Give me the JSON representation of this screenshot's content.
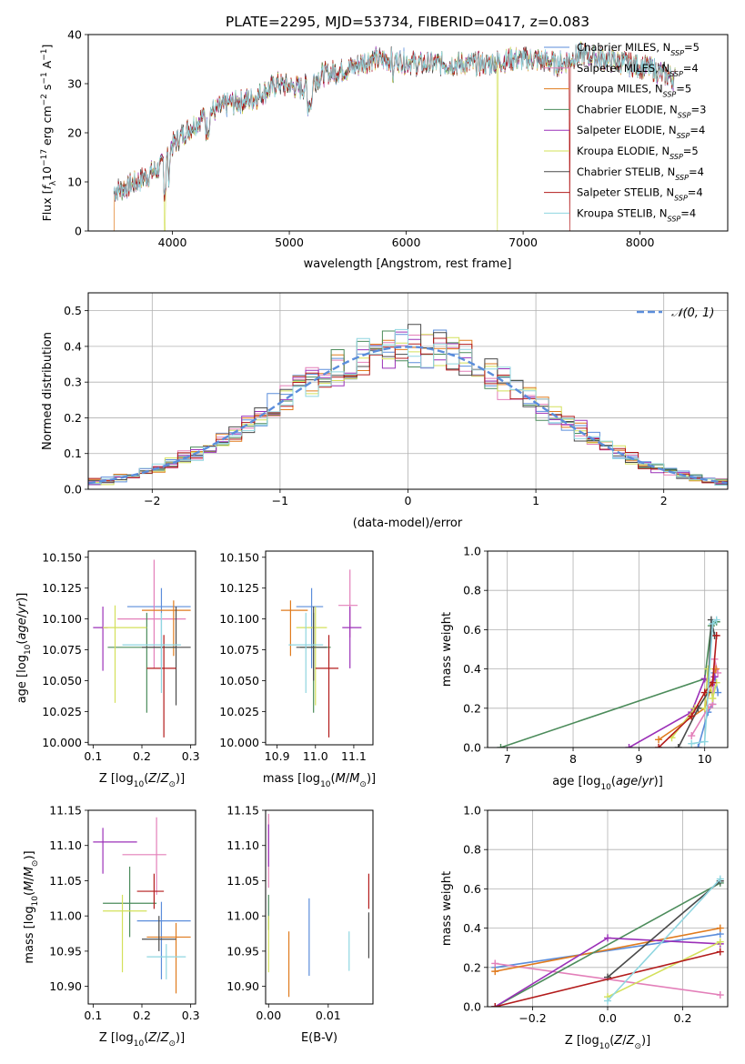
{
  "title": "PLATE=2295, MJD=53734, FIBERID=0417, z=0.083",
  "colors": [
    "#5b8ddb",
    "#e37fb9",
    "#e07b1e",
    "#4c8c5b",
    "#9b30b8",
    "#d3e05a",
    "#4a4a4a",
    "#b31b1b",
    "#8fd6e0"
  ],
  "chart_data": [
    {
      "id": "spectrum",
      "type": "line",
      "xlabel": "wavelength [Angstrom, rest frame]",
      "ylabel": "Flux [f_λ10^-17 erg cm^-2 s^-1 A^-1]",
      "xlim": [
        3280,
        8750
      ],
      "ylim": [
        0,
        40
      ],
      "xticks": [
        "4000",
        "5000",
        "6000",
        "7000",
        "8000"
      ],
      "yticks": [
        "0",
        "10",
        "20",
        "30",
        "40"
      ],
      "grid": false,
      "legend_position": "top-right",
      "legend": [
        {
          "base": "Chabrier MILES, N",
          "sub": "SSP",
          "tail": "=5"
        },
        {
          "base": "Salpeter MILES, N",
          "sub": "SSP",
          "tail": "=4"
        },
        {
          "base": "Kroupa MILES, N",
          "sub": "SSP",
          "tail": "=5"
        },
        {
          "base": "Chabrier ELODIE, N",
          "sub": "SSP",
          "tail": "=3"
        },
        {
          "base": "Salpeter ELODIE, N",
          "sub": "SSP",
          "tail": "=4"
        },
        {
          "base": "Kroupa ELODIE, N",
          "sub": "SSP",
          "tail": "=5"
        },
        {
          "base": "Chabrier STELIB, N",
          "sub": "SSP",
          "tail": "=4"
        },
        {
          "base": "Salpeter STELIB, N",
          "sub": "SSP",
          "tail": "=4"
        },
        {
          "base": "Kroupa STELIB, N",
          "sub": "SSP",
          "tail": "=4"
        }
      ],
      "continuum": [
        [
          3500,
          8
        ],
        [
          3700,
          10
        ],
        [
          3900,
          13
        ],
        [
          3980,
          17
        ],
        [
          4100,
          20
        ],
        [
          4300,
          24
        ],
        [
          4500,
          26
        ],
        [
          4700,
          27
        ],
        [
          4900,
          30
        ],
        [
          5100,
          29
        ],
        [
          5300,
          32
        ],
        [
          5500,
          33
        ],
        [
          5700,
          35
        ],
        [
          5900,
          35
        ],
        [
          6100,
          34
        ],
        [
          6300,
          34
        ],
        [
          6500,
          34
        ],
        [
          6700,
          34
        ],
        [
          6900,
          35
        ],
        [
          7100,
          35
        ],
        [
          7300,
          34
        ],
        [
          7500,
          36
        ],
        [
          7700,
          35
        ],
        [
          7900,
          34
        ],
        [
          8100,
          33
        ],
        [
          8300,
          31
        ]
      ],
      "xrange": [
        3500,
        8300
      ],
      "sharp_drops": [
        {
          "series": 2,
          "x": 3500
        },
        {
          "series": 5,
          "x": 3935
        },
        {
          "series": 5,
          "x": 6780
        },
        {
          "series": 7,
          "x": 7400
        }
      ]
    },
    {
      "id": "residuals",
      "type": "histogram",
      "xlabel": "(data-model)/error",
      "ylabel": "Normed distribution",
      "xlim": [
        -2.5,
        2.5
      ],
      "ylim": [
        0,
        0.55
      ],
      "xticks": [
        [
          "-2",
          "−2"
        ],
        [
          "-1",
          "−1"
        ],
        [
          "0",
          "0"
        ],
        [
          "1",
          "1"
        ],
        [
          "2",
          "2"
        ]
      ],
      "yticks": [
        "0.0",
        "0.1",
        "0.2",
        "0.3",
        "0.4",
        "0.5"
      ],
      "grid": true,
      "legend_position": "top-right",
      "legend_label": "𝒩(0, 1)",
      "bin_width": 0.1,
      "model_peak": 0.399
    },
    {
      "id": "age_vs_Z",
      "type": "errorbar",
      "xlabel": "Z [log10(Z/Z⊙)]",
      "ylabel": "age [log10(age/yr)]",
      "xlim": [
        0.09,
        0.31
      ],
      "ylim": [
        9.998,
        10.155
      ],
      "xticks": [
        "0.1",
        "0.2",
        "0.3"
      ],
      "yticks": [
        "10.000",
        "10.025",
        "10.050",
        "10.075",
        "10.100",
        "10.125",
        "10.150"
      ],
      "points": [
        {
          "s": 0,
          "x": 0.24,
          "y": 10.11,
          "xerr": [
            0.17,
            0.3
          ],
          "yerr": [
            10.06,
            10.125
          ]
        },
        {
          "s": 1,
          "x": 0.225,
          "y": 10.1,
          "xerr": [
            0.15,
            0.29
          ],
          "yerr": [
            10.06,
            10.148
          ]
        },
        {
          "s": 2,
          "x": 0.265,
          "y": 10.107,
          "xerr": [
            0.2,
            0.3
          ],
          "yerr": [
            10.07,
            10.115
          ]
        },
        {
          "s": 3,
          "x": 0.21,
          "y": 10.077,
          "xerr": [
            0.13,
            0.27
          ],
          "yerr": [
            10.024,
            10.105
          ]
        },
        {
          "s": 4,
          "x": 0.12,
          "y": 10.093,
          "xerr": [
            0.1,
            0.13
          ],
          "yerr": [
            10.058,
            10.11
          ]
        },
        {
          "s": 5,
          "x": 0.145,
          "y": 10.093,
          "xerr": [
            0.12,
            0.21
          ],
          "yerr": [
            10.032,
            10.111
          ]
        },
        {
          "s": 6,
          "x": 0.27,
          "y": 10.077,
          "xerr": [
            0.2,
            0.3
          ],
          "yerr": [
            10.03,
            10.11
          ]
        },
        {
          "s": 7,
          "x": 0.245,
          "y": 10.06,
          "xerr": [
            0.21,
            0.27
          ],
          "yerr": [
            10.004,
            10.087
          ]
        },
        {
          "s": 8,
          "x": 0.24,
          "y": 10.079,
          "xerr": [
            0.16,
            0.28
          ],
          "yerr": [
            10.04,
            10.105
          ]
        }
      ]
    },
    {
      "id": "age_vs_mass",
      "type": "errorbar",
      "xlabel": "mass [log10(M/M⊙)]",
      "ylabel": "",
      "xlim": [
        10.87,
        11.15
      ],
      "ylim": [
        9.998,
        10.155
      ],
      "xticks": [
        "10.9",
        "11.0",
        "11.1"
      ],
      "yticks": [
        "10.000",
        "10.025",
        "10.050",
        "10.075",
        "10.100",
        "10.125",
        "10.150"
      ],
      "points": [
        {
          "s": 0,
          "x": 10.99,
          "y": 10.11,
          "xerr": [
            10.95,
            11.02
          ],
          "yerr": [
            10.06,
            10.125
          ]
        },
        {
          "s": 1,
          "x": 11.09,
          "y": 10.111,
          "xerr": [
            11.06,
            11.11
          ],
          "yerr": [
            10.085,
            10.14
          ]
        },
        {
          "s": 2,
          "x": 10.935,
          "y": 10.107,
          "xerr": [
            10.91,
            10.98
          ],
          "yerr": [
            10.07,
            10.115
          ]
        },
        {
          "s": 3,
          "x": 10.995,
          "y": 10.077,
          "xerr": [
            10.96,
            11.04
          ],
          "yerr": [
            10.024,
            10.105
          ]
        },
        {
          "s": 4,
          "x": 11.09,
          "y": 10.093,
          "xerr": [
            11.07,
            11.12
          ],
          "yerr": [
            10.06,
            10.11
          ]
        },
        {
          "s": 5,
          "x": 11.0,
          "y": 10.093,
          "xerr": [
            10.95,
            11.03
          ],
          "yerr": [
            10.03,
            10.11
          ]
        },
        {
          "s": 6,
          "x": 10.995,
          "y": 10.077,
          "xerr": [
            10.95,
            11.03
          ],
          "yerr": [
            10.05,
            10.11
          ]
        },
        {
          "s": 7,
          "x": 11.035,
          "y": 10.06,
          "xerr": [
            11.0,
            11.06
          ],
          "yerr": [
            10.004,
            10.087
          ]
        },
        {
          "s": 8,
          "x": 10.975,
          "y": 10.079,
          "xerr": [
            10.93,
            11.02
          ],
          "yerr": [
            10.04,
            10.105
          ]
        }
      ]
    },
    {
      "id": "mass_weight_vs_age",
      "type": "line",
      "xlabel": "age [log10(age/yr)]",
      "ylabel": "mass weight",
      "xlim": [
        6.7,
        10.35
      ],
      "ylim": [
        0,
        1
      ],
      "xticks": [
        "7",
        "8",
        "9",
        "10"
      ],
      "yticks": [
        "0.0",
        "0.2",
        "0.4",
        "0.6",
        "0.8",
        "1.0"
      ],
      "grid": true,
      "series": [
        {
          "s": 0,
          "points": [
            [
              9.9,
              0.0
            ],
            [
              10.05,
              0.18
            ],
            [
              10.12,
              0.22
            ],
            [
              10.15,
              0.38
            ],
            [
              10.2,
              0.28
            ]
          ]
        },
        {
          "s": 1,
          "points": [
            [
              9.8,
              0.06
            ],
            [
              10.05,
              0.2
            ],
            [
              10.12,
              0.22
            ],
            [
              10.15,
              0.45
            ],
            [
              10.2,
              0.38
            ]
          ]
        },
        {
          "s": 2,
          "points": [
            [
              9.3,
              0.04
            ],
            [
              10.0,
              0.2
            ],
            [
              10.12,
              0.33
            ],
            [
              10.17,
              0.4
            ]
          ]
        },
        {
          "s": 3,
          "points": [
            [
              6.9,
              0.0
            ],
            [
              10.0,
              0.35
            ],
            [
              10.1,
              0.62
            ],
            [
              10.18,
              0.64
            ]
          ]
        },
        {
          "s": 4,
          "points": [
            [
              8.85,
              0.0
            ],
            [
              9.8,
              0.18
            ],
            [
              10.0,
              0.35
            ],
            [
              10.1,
              0.32
            ],
            [
              10.15,
              0.36
            ]
          ]
        },
        {
          "s": 5,
          "points": [
            [
              9.5,
              0.05
            ],
            [
              9.85,
              0.2
            ],
            [
              10.0,
              0.2
            ],
            [
              10.05,
              0.4
            ],
            [
              10.12,
              0.25
            ],
            [
              10.18,
              0.33
            ]
          ]
        },
        {
          "s": 6,
          "points": [
            [
              9.6,
              0.0
            ],
            [
              9.9,
              0.2
            ],
            [
              10.05,
              0.28
            ],
            [
              10.1,
              0.65
            ],
            [
              10.15,
              0.57
            ]
          ]
        },
        {
          "s": 7,
          "points": [
            [
              9.3,
              0.0
            ],
            [
              9.8,
              0.16
            ],
            [
              10.0,
              0.28
            ],
            [
              10.12,
              0.33
            ],
            [
              10.18,
              0.57
            ]
          ]
        },
        {
          "s": 8,
          "points": [
            [
              9.8,
              0.02
            ],
            [
              10.0,
              0.03
            ],
            [
              10.12,
              0.63
            ],
            [
              10.18,
              0.65
            ]
          ]
        }
      ]
    },
    {
      "id": "mass_vs_Z",
      "type": "errorbar",
      "xlabel": "Z [log10(Z/Z⊙)]",
      "ylabel": "mass [log10(M/M⊙)]",
      "xlim": [
        0.09,
        0.31
      ],
      "ylim": [
        10.875,
        11.15
      ],
      "xticks": [
        "0.1",
        "0.2",
        "0.3"
      ],
      "yticks": [
        "10.90",
        "10.95",
        "11.00",
        "11.05",
        "11.10",
        "11.15"
      ],
      "points": [
        {
          "s": 0,
          "x": 0.24,
          "y": 10.993,
          "xerr": [
            0.19,
            0.3
          ],
          "yerr": [
            10.91,
            11.02
          ]
        },
        {
          "s": 1,
          "x": 0.23,
          "y": 11.087,
          "xerr": [
            0.16,
            0.25
          ],
          "yerr": [
            11.03,
            11.14
          ]
        },
        {
          "s": 2,
          "x": 0.27,
          "y": 10.97,
          "xerr": [
            0.21,
            0.3
          ],
          "yerr": [
            10.89,
            10.99
          ]
        },
        {
          "s": 3,
          "x": 0.175,
          "y": 11.018,
          "xerr": [
            0.12,
            0.23
          ],
          "yerr": [
            10.97,
            11.07
          ]
        },
        {
          "s": 4,
          "x": 0.12,
          "y": 11.105,
          "xerr": [
            0.1,
            0.19
          ],
          "yerr": [
            11.06,
            11.125
          ]
        },
        {
          "s": 5,
          "x": 0.16,
          "y": 11.007,
          "xerr": [
            0.12,
            0.21
          ],
          "yerr": [
            10.92,
            11.03
          ]
        },
        {
          "s": 6,
          "x": 0.235,
          "y": 10.967,
          "xerr": [
            0.2,
            0.27
          ],
          "yerr": [
            10.95,
            11.0
          ]
        },
        {
          "s": 7,
          "x": 0.225,
          "y": 11.035,
          "xerr": [
            0.19,
            0.245
          ],
          "yerr": [
            11.01,
            11.06
          ]
        },
        {
          "s": 8,
          "x": 0.25,
          "y": 10.942,
          "xerr": [
            0.21,
            0.29
          ],
          "yerr": [
            10.91,
            10.96
          ]
        }
      ]
    },
    {
      "id": "mass_vs_EBV",
      "type": "errorbar",
      "xlabel": "E(B-V)",
      "ylabel": "",
      "xlim": [
        -0.0005,
        0.0175
      ],
      "ylim": [
        10.875,
        11.15
      ],
      "xticks": [
        "0.00",
        "0.01"
      ],
      "yticks": [
        "10.90",
        "10.95",
        "11.00",
        "11.05",
        "11.10",
        "11.15"
      ],
      "points": [
        {
          "s": 0,
          "x": 0.0068,
          "y": 10.97,
          "yerr": [
            10.915,
            11.025
          ]
        },
        {
          "s": 1,
          "x": 0.0,
          "y": 11.09,
          "yerr": [
            11.04,
            11.145
          ]
        },
        {
          "s": 2,
          "x": 0.0034,
          "y": 10.93,
          "yerr": [
            10.885,
            10.978
          ]
        },
        {
          "s": 3,
          "x": 0.0,
          "y": 11.0,
          "yerr": [
            10.98,
            11.03
          ]
        },
        {
          "s": 4,
          "x": 0.0,
          "y": 11.1,
          "yerr": [
            11.07,
            11.13
          ]
        },
        {
          "s": 5,
          "x": 0.0,
          "y": 10.96,
          "yerr": [
            10.92,
            11.0
          ]
        },
        {
          "s": 6,
          "x": 0.0168,
          "y": 10.97,
          "yerr": [
            10.94,
            11.005
          ]
        },
        {
          "s": 7,
          "x": 0.0168,
          "y": 11.035,
          "yerr": [
            11.01,
            11.06
          ]
        },
        {
          "s": 8,
          "x": 0.0135,
          "y": 10.95,
          "yerr": [
            10.922,
            10.978
          ]
        }
      ]
    },
    {
      "id": "mass_weight_vs_Z",
      "type": "line",
      "xlabel": "Z [log10(Z/Z⊙)]",
      "ylabel": "mass weight",
      "xlim": [
        -0.32,
        0.32
      ],
      "ylim": [
        0,
        1
      ],
      "xticks": [
        [
          "-0.2",
          "−0.2"
        ],
        [
          "0.0",
          "0.0"
        ],
        [
          "0.2",
          "0.2"
        ]
      ],
      "yticks": [
        "0.0",
        "0.2",
        "0.4",
        "0.6",
        "0.8",
        "1.0"
      ],
      "grid": true,
      "series": [
        {
          "s": 0,
          "points": [
            [
              -0.3,
              0.2
            ],
            [
              0.3,
              0.37
            ]
          ]
        },
        {
          "s": 1,
          "points": [
            [
              -0.3,
              0.22
            ],
            [
              0.3,
              0.06
            ]
          ]
        },
        {
          "s": 2,
          "points": [
            [
              -0.3,
              0.18
            ],
            [
              0.3,
              0.4
            ]
          ]
        },
        {
          "s": 3,
          "points": [
            [
              -0.3,
              0.0
            ],
            [
              0.3,
              0.63
            ]
          ]
        },
        {
          "s": 4,
          "points": [
            [
              -0.3,
              0.0
            ],
            [
              0.0,
              0.35
            ],
            [
              0.3,
              0.32
            ]
          ]
        },
        {
          "s": 5,
          "points": [
            [
              0.0,
              0.05
            ],
            [
              0.3,
              0.33
            ]
          ]
        },
        {
          "s": 6,
          "points": [
            [
              0.0,
              0.15
            ],
            [
              0.3,
              0.64
            ]
          ]
        },
        {
          "s": 7,
          "points": [
            [
              -0.3,
              0.0
            ],
            [
              0.3,
              0.28
            ]
          ]
        },
        {
          "s": 8,
          "points": [
            [
              0.0,
              0.03
            ],
            [
              0.3,
              0.65
            ]
          ]
        }
      ]
    }
  ]
}
